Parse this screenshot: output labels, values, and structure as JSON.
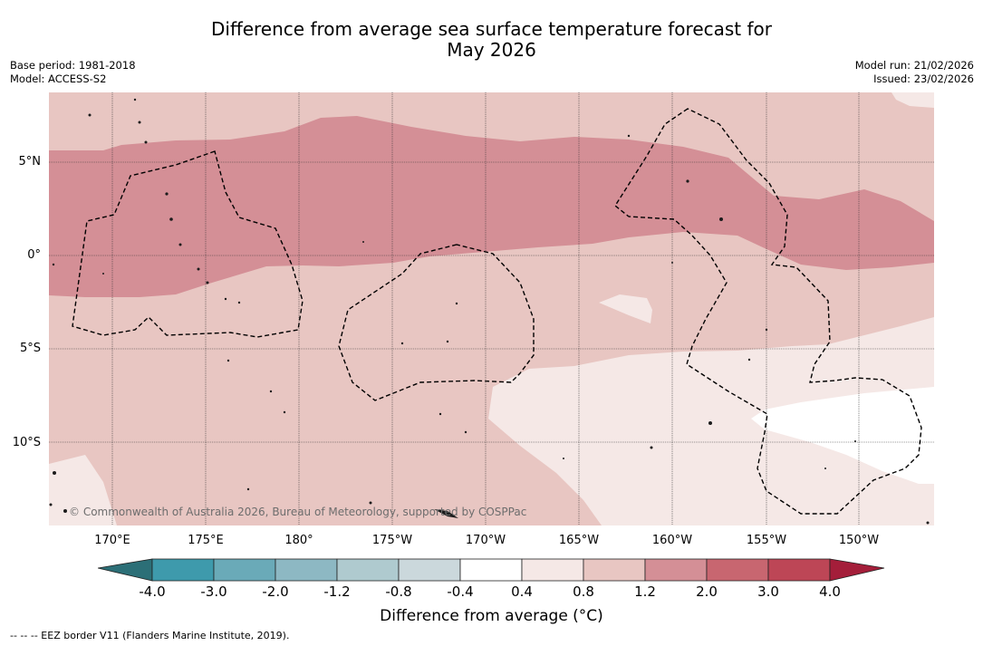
{
  "title": {
    "line1": "Difference from average sea surface temperature forecast for",
    "line2": "May 2026"
  },
  "meta": {
    "base_period": "Base period: 1981-2018",
    "model": "Model: ACCESS-S2",
    "model_run": "Model run: 21/02/2026",
    "issued": "Issued: 23/02/2026"
  },
  "map": {
    "longitude_labels": [
      "170°E",
      "175°E",
      "180°",
      "175°W",
      "170°W",
      "165°W",
      "160°W",
      "155°W",
      "150°W"
    ],
    "latitude_labels": [
      "5°N",
      "0°",
      "5°S",
      "10°S"
    ],
    "copyright": "© Commonwealth of Australia 2026, Bureau of Meteorology, supported by COSPPac",
    "anomaly_bands_present": [
      "0.4 to 0.8",
      "0.8 to 1.2",
      "1.2 to 2.0",
      "-0.4 to 0.4"
    ]
  },
  "colorbar": {
    "ticks": [
      "-4.0",
      "-3.0",
      "-2.0",
      "-1.2",
      "-0.8",
      "-0.4",
      "0.4",
      "0.8",
      "1.2",
      "2.0",
      "3.0",
      "4.0"
    ],
    "colors": {
      "below_min": "#2c6f77",
      "bins": [
        "#3e9aac",
        "#6aaab8",
        "#8db8c3",
        "#afcacf",
        "#cbd8dc",
        "#ffffff",
        "#f5e8e6",
        "#e8c6c2",
        "#d48f96",
        "#c86670",
        "#bd4656"
      ],
      "above_max": "#a41e3a"
    },
    "label": "Difference from average (°C)"
  },
  "legend": {
    "text": "--  --  -- EEZ border V11 (Flanders Marine Institute, 2019)."
  }
}
